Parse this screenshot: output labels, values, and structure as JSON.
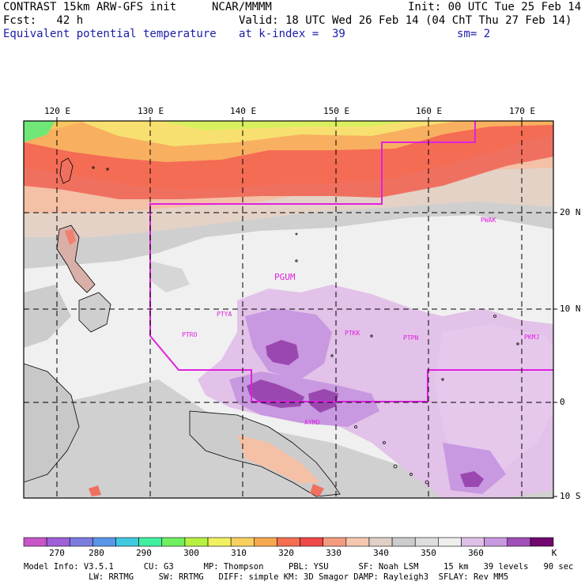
{
  "header": {
    "title": "CONTRAST 15km ARW-GFS init",
    "org": "NCAR/MMMM",
    "init": "Init: 00 UTC Tue 25 Feb 14",
    "fcst": "Fcst:   42 h",
    "valid": "Valid: 18 UTC Wed 26 Feb 14 (04 ChT Thu 27 Feb 14)",
    "field": "Equivalent potential temperature",
    "level": "at k-index =  39",
    "smooth": "sm= 2"
  },
  "map": {
    "lon_labels": [
      "120 E",
      "130 E",
      "140 E",
      "150 E",
      "160 E",
      "170 E"
    ],
    "lat_labels": [
      "20 N",
      "10 N",
      "0",
      "10 S"
    ],
    "stations": [
      "PGUM",
      "PTYA",
      "PTRO",
      "PTKK",
      "PTPN",
      "PKMJ",
      "PWAK",
      "AYMO"
    ]
  },
  "colorbar": {
    "labels": [
      "270",
      "280",
      "290",
      "300",
      "310",
      "320",
      "330",
      "340",
      "350",
      "360",
      "K"
    ],
    "colors": [
      "#c856c8",
      "#a060d8",
      "#7c7ce0",
      "#5a96e8",
      "#40c8e0",
      "#40f0a0",
      "#70f060",
      "#b8f040",
      "#f0f060",
      "#f8d060",
      "#f8a850",
      "#f47050",
      "#f04848",
      "#f49c80",
      "#f4c8b0",
      "#e0d0c8",
      "#cccccc",
      "#dedede",
      "#eeeeee",
      "#e0c0e8",
      "#c898e0",
      "#a050b8",
      "#700870"
    ]
  },
  "footer": {
    "line1": "Model Info: V3.5.1      CU: G3      MP: Thompson     PBL: YSU      SF: Noah LSM     15 km   39 levels   90 sec",
    "line2": "             LW: RRTMG     SW: RRTMG   DIFF: simple KM: 3D Smagor DAMP: Rayleigh3  SFLAY: Rev MM5"
  }
}
